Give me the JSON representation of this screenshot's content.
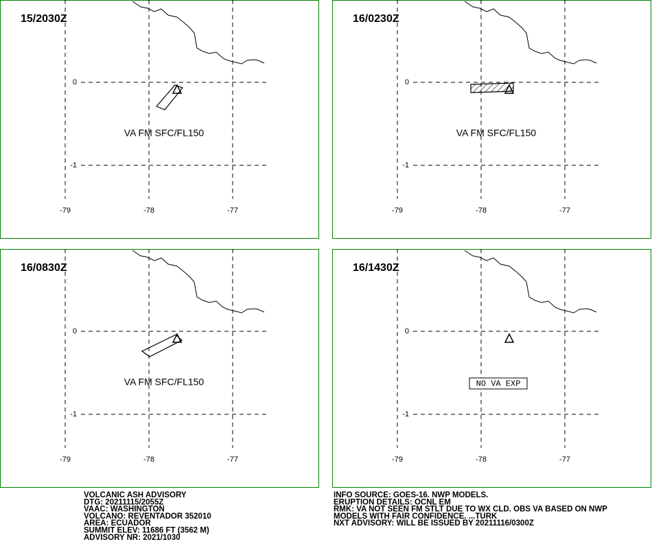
{
  "grid": {
    "lon_ticks": [
      -79,
      -78,
      -77
    ],
    "lat_ticks": [
      0,
      -1
    ]
  },
  "panels": [
    {
      "time": "15/2030Z",
      "label": "VA FM SFC/FL150"
    },
    {
      "time": "16/0230Z",
      "label": "VA FM SFC/FL150"
    },
    {
      "time": "16/0830Z",
      "label": "VA FM SFC/FL150"
    },
    {
      "time": "16/1430Z",
      "label": "NO VA EXP"
    }
  ],
  "info_left": [
    "VOLCANIC ASH ADVISORY",
    "DTG: 20211115/2055Z",
    "VAAC: WASHINGTON",
    "VOLCANO: REVENTADOR 352010",
    "AREA: ECUADOR",
    "SUMMIT ELEV: 11686 FT (3562 M)",
    "ADVISORY NR: 2021/1030"
  ],
  "info_right": [
    "INFO SOURCE: GOES-16. NWP MODELS.",
    "ERUPTION DETAILS: OCNL EM",
    "RMK: VA NOT SEEN FM STLT DUE TO WX CLD. OBS VA BASED ON NWP",
    "MODELS WITH FAIR CONFIDENCE. ...TURK",
    "NXT ADVISORY: WILL BE ISSUED BY 20211116/0300Z"
  ]
}
